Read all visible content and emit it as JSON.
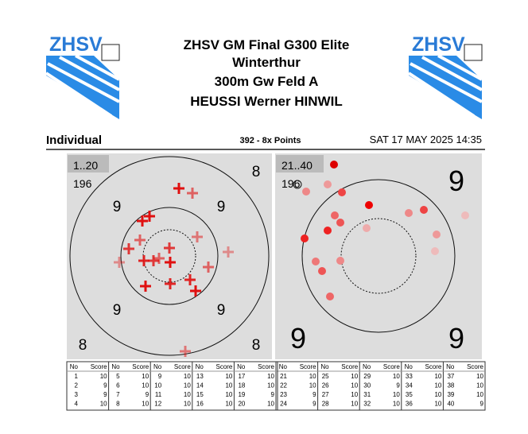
{
  "header": {
    "logo": "ZHSV",
    "title": "ZHSV GM Final G300 Elite",
    "location": "Winterthur",
    "discipline": "300m Gw Feld A",
    "shooter": "HEUSSI Werner HINWIL"
  },
  "summary": {
    "mode": "Individual",
    "result": "392 -  8x Points",
    "datetime": "SAT 17 MAY 2025 14:35"
  },
  "targets": [
    {
      "range": "1..20",
      "total": "196",
      "ring_labels": [
        "8",
        "9",
        "9",
        "9",
        "9",
        "8",
        "8"
      ]
    },
    {
      "range": "21..40",
      "total": "196",
      "ring_labels": [
        "9",
        "9",
        "9"
      ]
    }
  ],
  "scores": {
    "headers": [
      "No",
      "Score"
    ],
    "groups": [
      [
        [
          1,
          10
        ],
        [
          2,
          9
        ],
        [
          3,
          9
        ],
        [
          4,
          10
        ]
      ],
      [
        [
          5,
          10
        ],
        [
          6,
          10
        ],
        [
          7,
          9
        ],
        [
          8,
          10
        ]
      ],
      [
        [
          9,
          10
        ],
        [
          10,
          10
        ],
        [
          11,
          10
        ],
        [
          12,
          10
        ]
      ],
      [
        [
          13,
          10
        ],
        [
          14,
          10
        ],
        [
          15,
          10
        ],
        [
          16,
          10
        ]
      ],
      [
        [
          17,
          10
        ],
        [
          18,
          10
        ],
        [
          19,
          9
        ],
        [
          20,
          10
        ]
      ],
      [
        [
          21,
          10
        ],
        [
          22,
          10
        ],
        [
          23,
          9
        ],
        [
          24,
          9
        ]
      ],
      [
        [
          25,
          10
        ],
        [
          26,
          10
        ],
        [
          27,
          10
        ],
        [
          28,
          10
        ]
      ],
      [
        [
          29,
          10
        ],
        [
          30,
          9
        ],
        [
          31,
          10
        ],
        [
          32,
          10
        ]
      ],
      [
        [
          33,
          10
        ],
        [
          34,
          10
        ],
        [
          35,
          10
        ],
        [
          36,
          10
        ]
      ],
      [
        [
          37,
          10
        ],
        [
          38,
          10
        ],
        [
          39,
          10
        ],
        [
          40,
          9
        ]
      ]
    ]
  }
}
